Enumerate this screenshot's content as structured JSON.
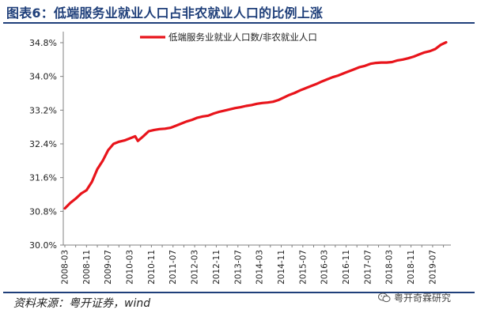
{
  "figure": {
    "title": "图表6：低端服务业就业人口占非农就业人口的比例上涨",
    "source": "资料来源：粤开证券，wind",
    "watermark": "粤开奇霖研究"
  },
  "colors": {
    "title": "#1f3f7a",
    "series": "#e8141b",
    "axis": "#808080"
  },
  "chart_data": {
    "type": "line",
    "title": "",
    "xlabel": "",
    "ylabel": "",
    "ylim": [
      30.0,
      35.2
    ],
    "grid": false,
    "legend_position": "top",
    "y_ticks": [
      30.0,
      30.8,
      31.6,
      32.4,
      33.2,
      34.0,
      34.8
    ],
    "y_tick_labels": [
      "30.0%",
      "30.8%",
      "31.6%",
      "32.4%",
      "33.2%",
      "34.0%",
      "34.8%"
    ],
    "x_tick_labels": [
      "2008-03",
      "2008-11",
      "2009-07",
      "2010-03",
      "2010-11",
      "2011-07",
      "2012-03",
      "2012-11",
      "2013-07",
      "2014-03",
      "2014-11",
      "2015-07",
      "2016-03",
      "2016-11",
      "2017-07",
      "2018-03",
      "2018-11",
      "2019-07"
    ],
    "x_start": "2008-03",
    "x_end": "2019-12",
    "series": [
      {
        "name": "低端服务业就业人口数/非农就业人口",
        "color": "#e8141b",
        "points": [
          [
            "2008-03",
            30.87
          ],
          [
            "2008-05",
            31.0
          ],
          [
            "2008-07",
            31.1
          ],
          [
            "2008-09",
            31.22
          ],
          [
            "2008-11",
            31.3
          ],
          [
            "2009-01",
            31.5
          ],
          [
            "2009-03",
            31.8
          ],
          [
            "2009-05",
            32.0
          ],
          [
            "2009-07",
            32.25
          ],
          [
            "2009-09",
            32.4
          ],
          [
            "2009-11",
            32.45
          ],
          [
            "2010-01",
            32.48
          ],
          [
            "2010-03",
            32.53
          ],
          [
            "2010-05",
            32.58
          ],
          [
            "2010-06",
            32.47
          ],
          [
            "2010-08",
            32.58
          ],
          [
            "2010-10",
            32.7
          ],
          [
            "2010-12",
            32.73
          ],
          [
            "2011-02",
            32.75
          ],
          [
            "2011-04",
            32.76
          ],
          [
            "2011-06",
            32.78
          ],
          [
            "2011-08",
            32.83
          ],
          [
            "2011-10",
            32.88
          ],
          [
            "2011-12",
            32.93
          ],
          [
            "2012-02",
            32.97
          ],
          [
            "2012-04",
            33.02
          ],
          [
            "2012-06",
            33.05
          ],
          [
            "2012-08",
            33.07
          ],
          [
            "2012-10",
            33.12
          ],
          [
            "2012-12",
            33.16
          ],
          [
            "2013-02",
            33.19
          ],
          [
            "2013-04",
            33.22
          ],
          [
            "2013-06",
            33.25
          ],
          [
            "2013-08",
            33.27
          ],
          [
            "2013-10",
            33.3
          ],
          [
            "2013-12",
            33.32
          ],
          [
            "2014-02",
            33.35
          ],
          [
            "2014-04",
            33.37
          ],
          [
            "2014-06",
            33.38
          ],
          [
            "2014-08",
            33.4
          ],
          [
            "2014-10",
            33.44
          ],
          [
            "2014-12",
            33.5
          ],
          [
            "2015-02",
            33.56
          ],
          [
            "2015-04",
            33.61
          ],
          [
            "2015-06",
            33.67
          ],
          [
            "2015-08",
            33.72
          ],
          [
            "2015-10",
            33.77
          ],
          [
            "2015-12",
            33.82
          ],
          [
            "2016-02",
            33.88
          ],
          [
            "2016-04",
            33.93
          ],
          [
            "2016-06",
            33.98
          ],
          [
            "2016-08",
            34.02
          ],
          [
            "2016-10",
            34.07
          ],
          [
            "2016-12",
            34.12
          ],
          [
            "2017-02",
            34.17
          ],
          [
            "2017-04",
            34.22
          ],
          [
            "2017-06",
            34.25
          ],
          [
            "2017-08",
            34.3
          ],
          [
            "2017-10",
            34.32
          ],
          [
            "2017-12",
            34.33
          ],
          [
            "2018-02",
            34.33
          ],
          [
            "2018-04",
            34.34
          ],
          [
            "2018-06",
            34.38
          ],
          [
            "2018-08",
            34.4
          ],
          [
            "2018-10",
            34.43
          ],
          [
            "2018-12",
            34.47
          ],
          [
            "2019-02",
            34.52
          ],
          [
            "2019-04",
            34.57
          ],
          [
            "2019-06",
            34.6
          ],
          [
            "2019-08",
            34.65
          ],
          [
            "2019-10",
            34.75
          ],
          [
            "2019-12",
            34.81
          ]
        ]
      }
    ]
  }
}
